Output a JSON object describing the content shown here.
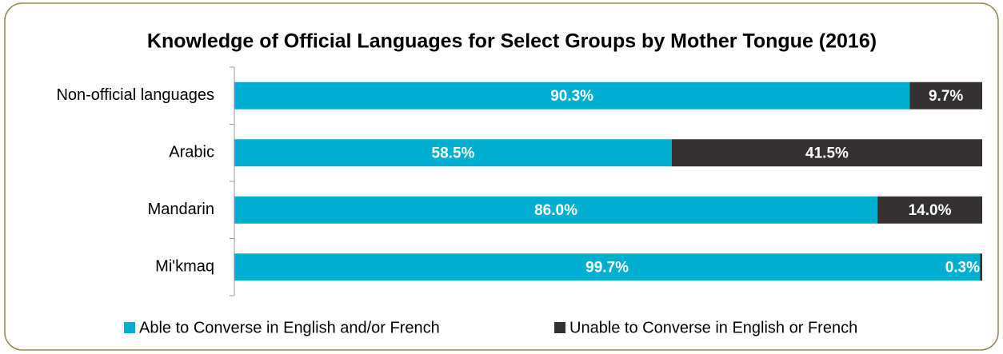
{
  "chart_data": {
    "type": "stacked_bar_horizontal",
    "title": "Knowledge of Official Languages for Select Groups by Mother Tongue (2016)",
    "categories": [
      "Non-official languages",
      "Arabic",
      "Mandarin",
      "Mi'kmaq"
    ],
    "series": [
      {
        "name": "Able to Converse in English and/or French",
        "color": "#00afd0",
        "values": [
          90.3,
          58.5,
          86.0,
          99.7
        ],
        "value_labels": [
          "90.3%",
          "58.5%",
          "86.0%",
          "99.7%"
        ]
      },
      {
        "name": "Unable to Converse in English or French",
        "color": "#333132",
        "values": [
          9.7,
          41.5,
          14.0,
          0.3
        ],
        "value_labels": [
          "9.7%",
          "41.5%",
          "14.0%",
          "0.3%"
        ]
      }
    ],
    "xlim": [
      0,
      100
    ]
  }
}
